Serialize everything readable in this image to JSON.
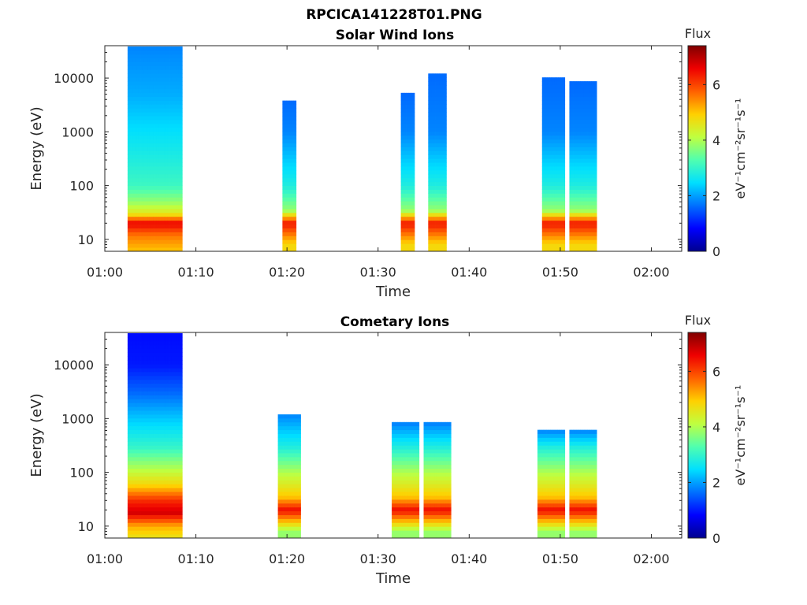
{
  "figure_title": "RPCICA141228T01.PNG",
  "colorbar_palette": [
    "#00008f",
    "#0000ff",
    "#0070ff",
    "#00dfff",
    "#50ffaf",
    "#bfff40",
    "#ffd000",
    "#ff6000",
    "#ef0000",
    "#800000"
  ],
  "chart_data": [
    {
      "type": "heatmap",
      "title": "Solar Wind Ions",
      "xlabel": "Time",
      "ylabel": "Energy (eV)",
      "x_ticks": [
        "01:00",
        "01:10",
        "01:20",
        "01:30",
        "01:40",
        "01:50",
        "02:00"
      ],
      "y_ticks": [
        "10",
        "100",
        "1000",
        "10000"
      ],
      "y_scale": "log",
      "ylim": [
        6,
        40000
      ],
      "colorbar": {
        "title": "Flux",
        "label": "eV⁻¹cm⁻²sr⁻¹s⁻¹",
        "ticks": [
          "0",
          "2",
          "4",
          "6"
        ],
        "range": [
          0,
          7.4
        ]
      },
      "blocks": [
        {
          "t_start": "01:02:30",
          "t_end": "01:08:30",
          "energy_profile": [
            [
              6,
              5
            ],
            [
              12,
              5.6
            ],
            [
              20,
              6.6
            ],
            [
              30,
              4.6
            ],
            [
              50,
              3.8
            ],
            [
              100,
              3.1
            ],
            [
              300,
              2.8
            ],
            [
              1000,
              2.5
            ],
            [
              5000,
              2.1
            ],
            [
              40000,
              1.8
            ]
          ]
        },
        {
          "t_start": "01:19:30",
          "t_end": "01:21:00",
          "energy_profile": [
            [
              8,
              4.8
            ],
            [
              20,
              6.4
            ],
            [
              35,
              3.8
            ],
            [
              100,
              2.8
            ],
            [
              1000,
              1.8
            ],
            [
              4000,
              1.6
            ]
          ]
        },
        {
          "t_start": "01:32:30",
          "t_end": "01:34:00",
          "energy_profile": [
            [
              8,
              4.8
            ],
            [
              20,
              6.4
            ],
            [
              35,
              3.8
            ],
            [
              100,
              2.8
            ],
            [
              1000,
              1.8
            ],
            [
              5000,
              1.6
            ]
          ]
        },
        {
          "t_start": "01:35:30",
          "t_end": "01:37:30",
          "energy_profile": [
            [
              8,
              4.8
            ],
            [
              20,
              6.4
            ],
            [
              35,
              3.8
            ],
            [
              100,
              2.8
            ],
            [
              1000,
              1.8
            ],
            [
              13000,
              1.6
            ]
          ]
        },
        {
          "t_start": "01:48:00",
          "t_end": "01:50:30",
          "energy_profile": [
            [
              8,
              4.8
            ],
            [
              20,
              6.4
            ],
            [
              35,
              3.8
            ],
            [
              100,
              2.8
            ],
            [
              1000,
              1.8
            ],
            [
              10000,
              1.6
            ]
          ]
        },
        {
          "t_start": "01:51:00",
          "t_end": "01:54:00",
          "energy_profile": [
            [
              8,
              4.8
            ],
            [
              20,
              6.4
            ],
            [
              35,
              3.8
            ],
            [
              100,
              2.8
            ],
            [
              1000,
              1.8
            ],
            [
              9000,
              1.6
            ]
          ]
        }
      ]
    },
    {
      "type": "heatmap",
      "title": "Cometary Ions",
      "xlabel": "Time",
      "ylabel": "Energy (eV)",
      "x_ticks": [
        "01:00",
        "01:10",
        "01:20",
        "01:30",
        "01:40",
        "01:50",
        "02:00"
      ],
      "y_ticks": [
        "10",
        "100",
        "1000",
        "10000"
      ],
      "y_scale": "log",
      "ylim": [
        6,
        40000
      ],
      "colorbar": {
        "title": "Flux",
        "label": "eV⁻¹cm⁻²sr⁻¹s⁻¹",
        "ticks": [
          "0",
          "2",
          "4",
          "6"
        ],
        "range": [
          0,
          7.4
        ]
      },
      "blocks": [
        {
          "t_start": "01:02:30",
          "t_end": "01:08:30",
          "energy_profile": [
            [
              6,
              4.6
            ],
            [
              10,
              5.2
            ],
            [
              18,
              6.8
            ],
            [
              30,
              6.2
            ],
            [
              60,
              4.8
            ],
            [
              100,
              4.2
            ],
            [
              300,
              3.0
            ],
            [
              1000,
              2.3
            ],
            [
              3000,
              1.6
            ],
            [
              10000,
              1.0
            ],
            [
              40000,
              0.9
            ]
          ]
        },
        {
          "t_start": "01:19:00",
          "t_end": "01:21:30",
          "energy_profile": [
            [
              8,
              3.8
            ],
            [
              20,
              6.5
            ],
            [
              35,
              5.0
            ],
            [
              100,
              4.0
            ],
            [
              300,
              2.8
            ],
            [
              1200,
              1.8
            ]
          ]
        },
        {
          "t_start": "01:31:30",
          "t_end": "01:34:30",
          "energy_profile": [
            [
              8,
              3.8
            ],
            [
              20,
              6.5
            ],
            [
              35,
              5.0
            ],
            [
              100,
              4.0
            ],
            [
              300,
              2.8
            ],
            [
              800,
              1.8
            ]
          ]
        },
        {
          "t_start": "01:35:00",
          "t_end": "01:38:00",
          "energy_profile": [
            [
              8,
              3.8
            ],
            [
              20,
              6.5
            ],
            [
              35,
              5.0
            ],
            [
              100,
              4.0
            ],
            [
              300,
              2.8
            ],
            [
              800,
              1.8
            ]
          ]
        },
        {
          "t_start": "01:47:30",
          "t_end": "01:50:30",
          "energy_profile": [
            [
              8,
              3.8
            ],
            [
              20,
              6.5
            ],
            [
              35,
              5.0
            ],
            [
              100,
              4.0
            ],
            [
              300,
              2.8
            ],
            [
              600,
              1.8
            ]
          ]
        },
        {
          "t_start": "01:51:00",
          "t_end": "01:54:00",
          "energy_profile": [
            [
              8,
              3.8
            ],
            [
              20,
              6.5
            ],
            [
              35,
              5.0
            ],
            [
              100,
              4.0
            ],
            [
              300,
              2.8
            ],
            [
              600,
              1.8
            ]
          ]
        }
      ]
    }
  ]
}
